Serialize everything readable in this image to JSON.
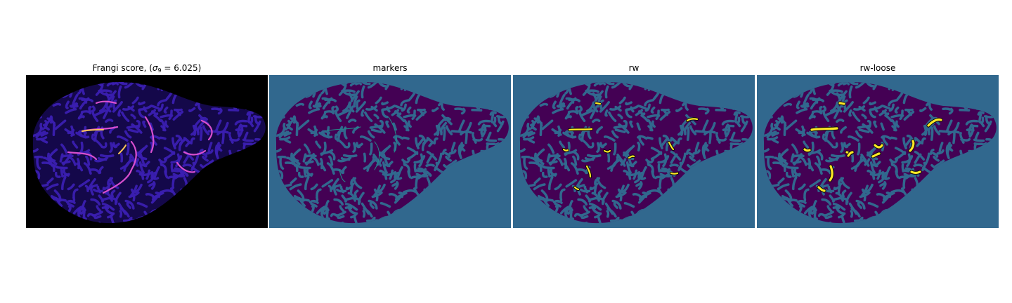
{
  "figure": {
    "panels": [
      {
        "id": "frangi",
        "title_prefix": "Frangi score, (",
        "title_sigma": "σ",
        "title_sub": "9",
        "title_suffix": " = 6.025)",
        "background_color": "#000000",
        "tissue_color": "#1a0f6e",
        "vessel_color": "#d94fcf",
        "hot_color": "#f7c35a"
      },
      {
        "id": "markers",
        "title": "markers",
        "background_color": "#31688e",
        "tissue_color": "#440154",
        "marker_color": "#21918c"
      },
      {
        "id": "rw",
        "title": "rw",
        "background_color": "#31688e",
        "tissue_color": "#440154",
        "segment_color": "#fde725"
      },
      {
        "id": "rw-loose",
        "title": "rw-loose",
        "background_color": "#31688e",
        "tissue_color": "#440154",
        "segment_color": "#fde725"
      }
    ]
  }
}
